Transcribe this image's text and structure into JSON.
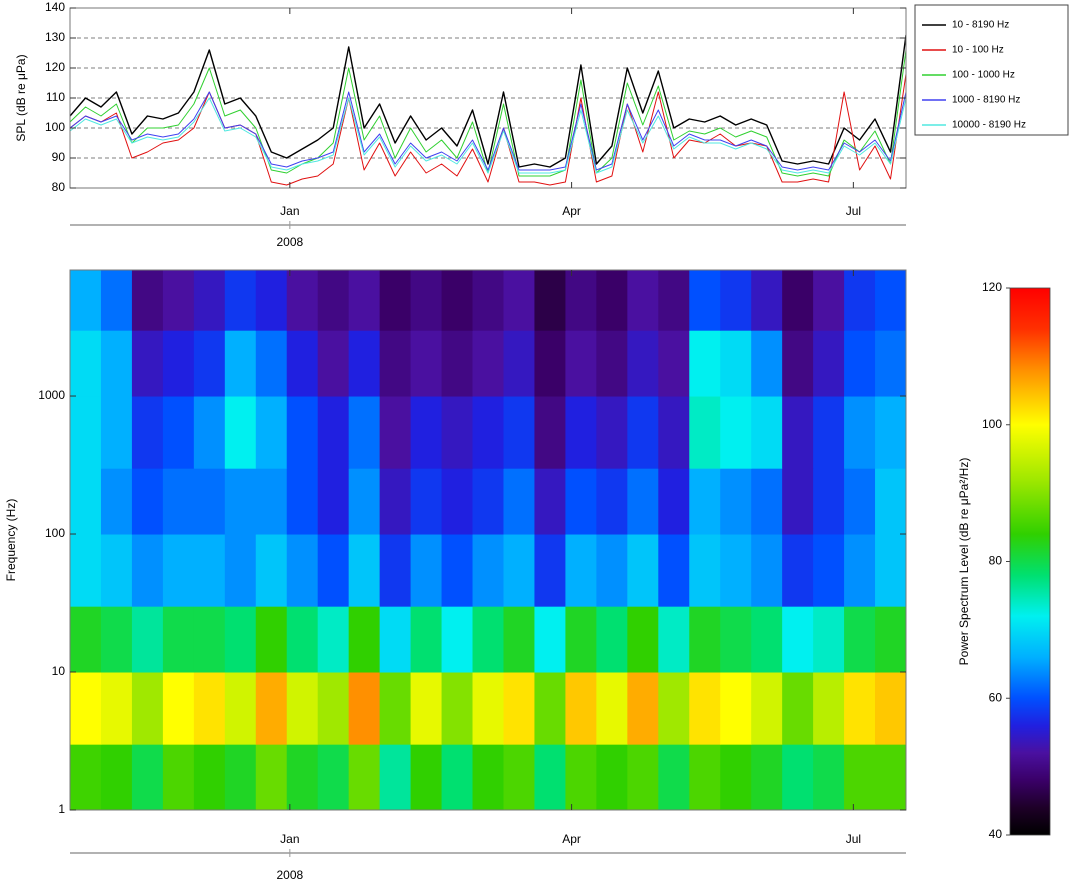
{
  "chart_data": [
    {
      "type": "line",
      "y_label": "SPL (dB re μPa)",
      "x": [
        0,
        5,
        10,
        15,
        20,
        25,
        30,
        35,
        40,
        45,
        50,
        55,
        60,
        65,
        70,
        75,
        80,
        85,
        90,
        95,
        100,
        105,
        110,
        115,
        120,
        125,
        130,
        135,
        140,
        145,
        150,
        155,
        160,
        165,
        170,
        175,
        180,
        185,
        190,
        195,
        200,
        205,
        210,
        215,
        220,
        225,
        230,
        235,
        240,
        245,
        250,
        255,
        260,
        265,
        270
      ],
      "xlim": [
        0,
        270
      ],
      "xticks": [
        {
          "value": 71,
          "label": "Jan"
        },
        {
          "value": 162,
          "label": "Apr"
        },
        {
          "value": 253,
          "label": "Jul"
        }
      ],
      "x_sublabel": "2008",
      "ylim": [
        80,
        140
      ],
      "yticks": [
        80,
        90,
        100,
        110,
        120,
        130,
        140
      ],
      "grid": true,
      "legend": "outside-right",
      "series": [
        {
          "name": "10 - 8190 Hz",
          "color": "#000000",
          "values": [
            104,
            110,
            107,
            112,
            98,
            104,
            103,
            105,
            112,
            126,
            108,
            110,
            104,
            92,
            90,
            93,
            96,
            100,
            127,
            100,
            108,
            95,
            104,
            96,
            100,
            94,
            106,
            88,
            112,
            87,
            88,
            87,
            90,
            121,
            88,
            94,
            120,
            105,
            119,
            100,
            103,
            102,
            104,
            101,
            103,
            101,
            89,
            88,
            89,
            88,
            100,
            96,
            103,
            92,
            131
          ]
        },
        {
          "name": "10 - 100 Hz",
          "color": "#e01010",
          "values": [
            100,
            104,
            102,
            105,
            90,
            92,
            95,
            96,
            100,
            112,
            100,
            101,
            98,
            82,
            81,
            83,
            84,
            88,
            110,
            86,
            95,
            84,
            92,
            85,
            88,
            84,
            93,
            82,
            100,
            82,
            82,
            81,
            82,
            110,
            82,
            84,
            108,
            92,
            112,
            90,
            96,
            95,
            98,
            94,
            95,
            94,
            82,
            82,
            83,
            82,
            112,
            86,
            94,
            83,
            118
          ]
        },
        {
          "name": "100 - 1000 Hz",
          "color": "#30d030",
          "values": [
            102,
            107,
            104,
            108,
            95,
            100,
            100,
            101,
            108,
            120,
            104,
            106,
            100,
            86,
            85,
            88,
            90,
            95,
            120,
            96,
            104,
            90,
            100,
            92,
            96,
            90,
            102,
            85,
            108,
            84,
            84,
            84,
            86,
            116,
            85,
            90,
            115,
            101,
            114,
            96,
            99,
            98,
            100,
            97,
            99,
            97,
            85,
            84,
            85,
            84,
            96,
            92,
            99,
            88,
            126
          ]
        },
        {
          "name": "1000 - 8190 Hz",
          "color": "#4040f0",
          "values": [
            100,
            104,
            102,
            104,
            96,
            98,
            97,
            98,
            103,
            112,
            100,
            101,
            98,
            88,
            87,
            89,
            90,
            92,
            112,
            92,
            98,
            88,
            95,
            90,
            92,
            89,
            96,
            86,
            100,
            86,
            86,
            86,
            87,
            108,
            86,
            88,
            108,
            96,
            106,
            94,
            98,
            96,
            96,
            94,
            96,
            94,
            87,
            86,
            87,
            86,
            95,
            92,
            96,
            89,
            112
          ]
        },
        {
          "name": "10000 - 8190 Hz",
          "color": "#50e8e0",
          "values": [
            99,
            103,
            101,
            103,
            95,
            97,
            96,
            97,
            102,
            110,
            99,
            100,
            97,
            87,
            86,
            88,
            89,
            91,
            110,
            91,
            97,
            87,
            94,
            89,
            91,
            88,
            95,
            85,
            99,
            85,
            85,
            85,
            86,
            106,
            85,
            87,
            106,
            95,
            104,
            93,
            97,
            95,
            95,
            93,
            95,
            93,
            86,
            85,
            86,
            85,
            94,
            91,
            95,
            88,
            110
          ]
        }
      ]
    },
    {
      "type": "heatmap",
      "y_label": "Frequency (Hz)",
      "x_bins": [
        0,
        10,
        20,
        30,
        40,
        50,
        60,
        70,
        80,
        90,
        100,
        110,
        120,
        130,
        140,
        150,
        160,
        170,
        180,
        190,
        200,
        210,
        220,
        230,
        240,
        250,
        260,
        270
      ],
      "y_bins": [
        1,
        3,
        10,
        30,
        100,
        300,
        1000,
        3000,
        8190
      ],
      "xlim": [
        0,
        270
      ],
      "xticks": [
        {
          "value": 71,
          "label": "Jan"
        },
        {
          "value": 162,
          "label": "Apr"
        },
        {
          "value": 253,
          "label": "Jul"
        }
      ],
      "x_sublabel": "2008",
      "ylim": [
        1,
        8190
      ],
      "log_y": true,
      "yticks": [
        1,
        10,
        100,
        1000
      ],
      "values": [
        [
          85,
          84,
          80,
          86,
          84,
          82,
          88,
          82,
          80,
          88,
          76,
          84,
          78,
          84,
          86,
          78,
          86,
          84,
          86,
          80,
          86,
          84,
          82,
          78,
          80,
          86,
          86
        ],
        [
          100,
          98,
          92,
          100,
          102,
          96,
          106,
          96,
          92,
          108,
          88,
          98,
          90,
          98,
          102,
          88,
          104,
          98,
          106,
          92,
          102,
          100,
          96,
          88,
          94,
          102,
          104
        ],
        [
          82,
          80,
          76,
          80,
          80,
          78,
          84,
          78,
          74,
          84,
          70,
          78,
          72,
          78,
          82,
          72,
          82,
          78,
          84,
          74,
          82,
          80,
          78,
          72,
          74,
          80,
          82
        ],
        [
          70,
          68,
          64,
          66,
          66,
          64,
          68,
          64,
          60,
          68,
          58,
          64,
          60,
          64,
          66,
          58,
          66,
          64,
          68,
          60,
          68,
          66,
          64,
          58,
          60,
          64,
          68
        ],
        [
          70,
          64,
          60,
          62,
          62,
          64,
          64,
          60,
          56,
          64,
          54,
          58,
          56,
          58,
          62,
          54,
          60,
          58,
          62,
          56,
          66,
          64,
          62,
          54,
          58,
          62,
          68
        ],
        [
          70,
          66,
          58,
          60,
          64,
          72,
          66,
          60,
          56,
          62,
          52,
          56,
          54,
          56,
          58,
          50,
          56,
          54,
          58,
          54,
          74,
          72,
          70,
          54,
          58,
          64,
          66
        ],
        [
          70,
          66,
          54,
          56,
          58,
          66,
          62,
          56,
          52,
          56,
          50,
          52,
          50,
          52,
          54,
          48,
          52,
          50,
          54,
          52,
          72,
          70,
          64,
          50,
          54,
          60,
          62
        ],
        [
          66,
          62,
          50,
          52,
          54,
          58,
          56,
          52,
          50,
          52,
          48,
          50,
          48,
          50,
          52,
          46,
          50,
          48,
          52,
          50,
          60,
          58,
          54,
          48,
          52,
          58,
          60
        ]
      ],
      "colorbar_label": "Power Spectrum Level (dB re μPa²/Hz)",
      "clim": [
        40,
        120
      ],
      "cticks": [
        40,
        60,
        80,
        100,
        120
      ],
      "colormap": [
        {
          "value": 40,
          "color": "#000000"
        },
        {
          "value": 44,
          "color": "#1e0028"
        },
        {
          "value": 48,
          "color": "#3a0068"
        },
        {
          "value": 52,
          "color": "#4a10a0"
        },
        {
          "value": 56,
          "color": "#2020e0"
        },
        {
          "value": 60,
          "color": "#0050ff"
        },
        {
          "value": 66,
          "color": "#00b0ff"
        },
        {
          "value": 72,
          "color": "#00f0f0"
        },
        {
          "value": 78,
          "color": "#00e070"
        },
        {
          "value": 84,
          "color": "#30d000"
        },
        {
          "value": 92,
          "color": "#a0e800"
        },
        {
          "value": 100,
          "color": "#ffff00"
        },
        {
          "value": 108,
          "color": "#ff9000"
        },
        {
          "value": 114,
          "color": "#ff3000"
        },
        {
          "value": 120,
          "color": "#ff0000"
        }
      ]
    }
  ]
}
